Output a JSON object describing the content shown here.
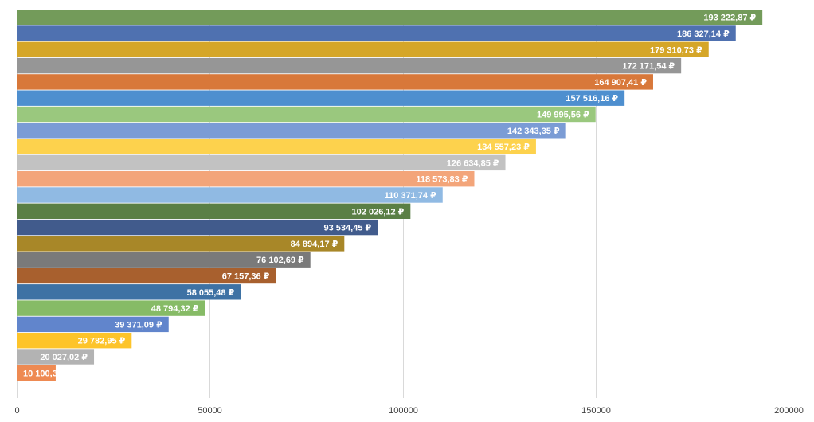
{
  "chart_data": {
    "type": "bar",
    "orientation": "horizontal",
    "title": "",
    "xlabel": "",
    "ylabel": "",
    "xlim": [
      0,
      200000
    ],
    "x_ticks": [
      0,
      50000,
      100000,
      150000,
      200000
    ],
    "x_tick_labels": [
      "0",
      "50000",
      "100000",
      "150000",
      "200000"
    ],
    "grid": true,
    "legend": "none",
    "value_label_position": "inside-end",
    "series": [
      {
        "name": "",
        "values": [
          193222.87,
          186327.14,
          179310.73,
          172171.54,
          164907.41,
          157516.16,
          149995.56,
          142343.35,
          134557.23,
          126634.85,
          118573.83,
          110371.74,
          102026.12,
          93534.45,
          84894.17,
          76102.69,
          67157.36,
          58055.48,
          48794.32,
          39371.09,
          29782.95,
          20027.02,
          10100.3
        ],
        "labels": [
          "193 222,87 ₽",
          "186 327,14 ₽",
          "179 310,73 ₽",
          "172 171,54 ₽",
          "164 907,41 ₽",
          "157 516,16 ₽",
          "149 995,56 ₽",
          "142 343,35 ₽",
          "134 557,23 ₽",
          "126 634,85 ₽",
          "118 573,83 ₽",
          "110 371,74 ₽",
          "102 026,12 ₽",
          "93 534,45 ₽",
          "84 894,17 ₽",
          "76 102,69 ₽",
          "67 157,36 ₽",
          "58 055,48 ₽",
          "48 794,32 ₽",
          "39 371,09 ₽",
          "29 782,95 ₽",
          "20 027,02 ₽",
          "10 100,3"
        ],
        "colors": [
          "#739b5a",
          "#4f71b0",
          "#d5a628",
          "#969696",
          "#d8783a",
          "#4e8fcf",
          "#9ac87e",
          "#7b9cd5",
          "#fdd24d",
          "#c2c2c2",
          "#f3a57a",
          "#90bae3",
          "#5a7f45",
          "#415b8c",
          "#a88728",
          "#7a7a7a",
          "#a8602e",
          "#3e72a4",
          "#86bb66",
          "#6185cc",
          "#fdc42a",
          "#b3b3b3",
          "#ee8a52"
        ]
      }
    ]
  }
}
